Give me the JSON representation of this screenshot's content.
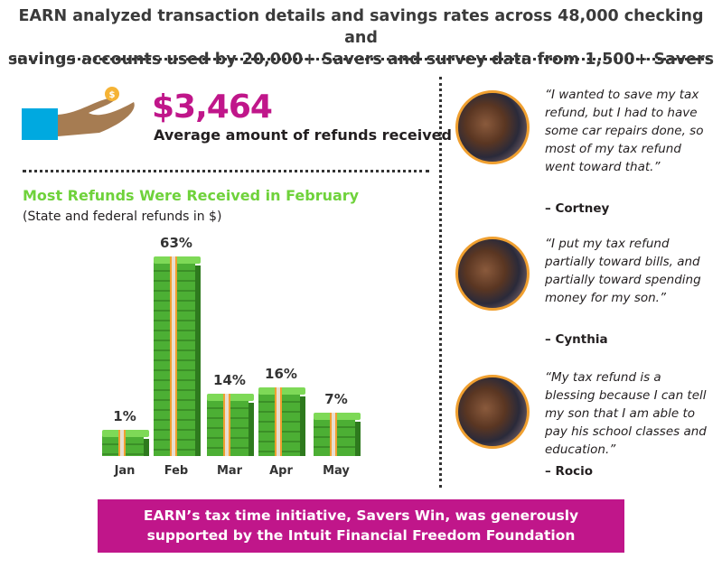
{
  "header": {
    "line1": "EARN analyzed transaction details and savings rates across 48,000 checking and",
    "line2": "savings accounts used by 20,000+ Savers and survey data from 1,500+ Savers"
  },
  "stat": {
    "amount": "$3,464",
    "label": "Average amount of refunds received"
  },
  "chart_data": {
    "type": "bar",
    "title": "Most Refunds Were Received in February",
    "subtitle": "(State and federal refunds in $)",
    "categories": [
      "Jan",
      "Feb",
      "Mar",
      "Apr",
      "May"
    ],
    "values": [
      1,
      63,
      14,
      16,
      7
    ],
    "labels": [
      "1%",
      "63%",
      "14%",
      "16%",
      "7%"
    ],
    "xlabel": "",
    "ylabel": "",
    "ylim": [
      0,
      63
    ]
  },
  "testimonials": [
    {
      "quote": "“I wanted to save my tax refund, but I had to have some car repairs done, so most of my tax refund went toward that.”",
      "author": "– Cortney"
    },
    {
      "quote": "“I put my tax refund partially toward bills, and partially toward spending money for my son.”",
      "author": "– Cynthia"
    },
    {
      "quote": "“My tax refund is a blessing because I can tell my son that I am able to pay his school classes and education.”",
      "author": "– Rocio"
    }
  ],
  "banner": {
    "line1": "EARN’s tax time initiative, Savers Win, was generously",
    "line2": "supported by the Intuit Financial Freedom Foundation"
  },
  "colors": {
    "magenta": "#c0168a",
    "green": "#6fd23b",
    "bar": "#4caf34"
  }
}
